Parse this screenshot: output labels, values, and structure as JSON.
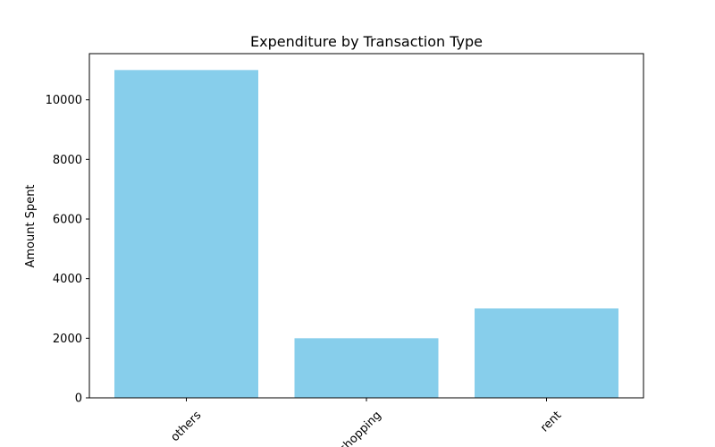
{
  "chart_data": {
    "type": "bar",
    "title": "Expenditure by Transaction Type",
    "xlabel": "",
    "ylabel": "Amount Spent",
    "categories": [
      "others",
      "shopping",
      "rent"
    ],
    "values": [
      11000,
      2000,
      3000
    ],
    "ylim": [
      0,
      11550
    ],
    "yticks": [
      0,
      2000,
      4000,
      6000,
      8000,
      10000
    ],
    "bar_color": "#87ceeb",
    "grid": false,
    "xtick_rotation": 45
  }
}
